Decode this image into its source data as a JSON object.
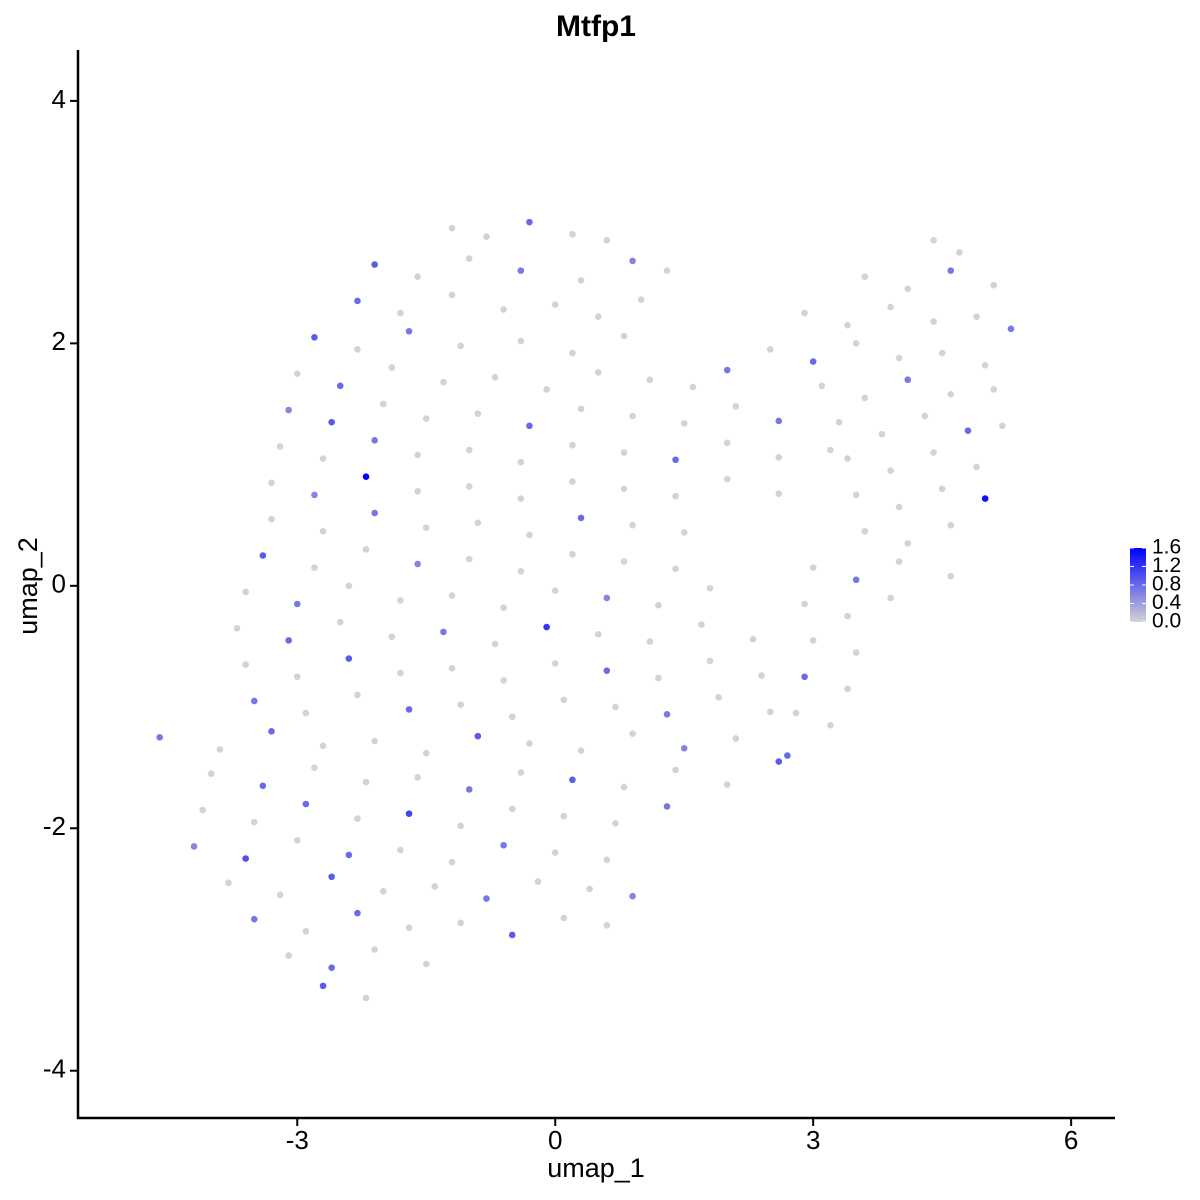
{
  "chart_data": {
    "type": "scatter",
    "title": "Mtfp1",
    "x_label": "umap_1",
    "y_label": "umap_2",
    "xlim": [
      -5.55,
      6.51
    ],
    "ylim": [
      -4.39,
      4.42
    ],
    "xticks": [
      -3,
      0,
      3,
      6
    ],
    "yticks": [
      -4,
      -2,
      0,
      2,
      4
    ],
    "grid": false,
    "color_low": "#d3d3d3",
    "color_high": "#0000ff",
    "clim": [
      0,
      1.6
    ],
    "cticks": [
      {
        "value": 0,
        "label": "0.0"
      },
      0.4,
      0.8,
      1.2,
      1.6
    ],
    "legend_position": "right",
    "x": [
      -1.2,
      -0.8,
      -0.3,
      0.2,
      0.6,
      -2.1,
      -1.6,
      -1.0,
      -0.4,
      0.3,
      0.9,
      1.3,
      -2.3,
      -1.8,
      -1.2,
      -0.6,
      0.0,
      0.5,
      1.0,
      -2.8,
      -2.3,
      -1.7,
      -1.1,
      -0.4,
      0.2,
      0.8,
      -3.0,
      -2.5,
      -1.9,
      -1.3,
      -0.7,
      -0.1,
      0.5,
      1.1,
      1.6,
      2.0,
      -3.1,
      -2.6,
      -2.0,
      -1.5,
      -0.9,
      -0.3,
      0.3,
      0.9,
      1.5,
      2.1,
      2.6,
      -3.2,
      -2.7,
      -2.1,
      -1.6,
      -1.0,
      -0.4,
      0.2,
      0.8,
      1.4,
      2.0,
      2.6,
      3.2,
      -3.3,
      -2.8,
      -2.2,
      -1.6,
      -1.0,
      -0.4,
      0.2,
      0.8,
      1.4,
      2.0,
      2.6,
      -3.3,
      -2.7,
      -2.1,
      -1.5,
      -0.9,
      -0.3,
      0.3,
      0.9,
      1.5,
      -3.4,
      -2.8,
      -2.2,
      -1.6,
      -1.0,
      -0.4,
      0.2,
      0.8,
      1.4,
      -3.6,
      -3.0,
      -2.4,
      -1.8,
      -1.2,
      -0.6,
      0.0,
      0.6,
      1.2,
      1.8,
      -3.7,
      -3.1,
      -2.5,
      -1.9,
      -1.3,
      -0.7,
      -0.1,
      0.5,
      1.1,
      1.7,
      2.3,
      -3.6,
      -3.0,
      -2.4,
      -1.8,
      -1.2,
      -0.6,
      0.0,
      0.6,
      1.2,
      1.8,
      2.4,
      -3.5,
      -2.9,
      -2.3,
      -1.7,
      -1.1,
      -0.5,
      0.1,
      0.7,
      1.3,
      1.9,
      2.5,
      -4.6,
      -3.9,
      -3.3,
      -2.7,
      -2.1,
      -1.5,
      -0.9,
      -0.3,
      0.3,
      0.9,
      1.5,
      2.1,
      2.7,
      -4.0,
      -3.4,
      -2.8,
      -2.2,
      -1.6,
      -1.0,
      -0.4,
      0.2,
      0.8,
      1.4,
      2.0,
      -4.1,
      -3.5,
      -2.9,
      -2.3,
      -1.7,
      -1.1,
      -0.5,
      0.1,
      0.7,
      1.3,
      -4.2,
      -3.6,
      -3.0,
      -2.4,
      -1.8,
      -1.2,
      -0.6,
      0.0,
      0.6,
      -3.8,
      -3.2,
      -2.6,
      -2.0,
      -1.4,
      -0.8,
      -0.2,
      0.4,
      0.9,
      -3.5,
      -2.9,
      -2.3,
      -1.7,
      -1.1,
      -0.5,
      0.1,
      0.6,
      -3.1,
      -2.6,
      -2.1,
      -1.5,
      -2.7,
      -2.2,
      4.4,
      4.7,
      3.6,
      4.1,
      4.6,
      5.1,
      2.9,
      3.4,
      3.9,
      4.4,
      4.9,
      5.3,
      2.5,
      3.0,
      3.5,
      4.0,
      4.5,
      5.0,
      3.1,
      3.6,
      4.1,
      4.6,
      5.1,
      3.3,
      3.8,
      4.3,
      4.8,
      5.2,
      3.4,
      3.9,
      4.4,
      4.9,
      3.5,
      4.0,
      4.5,
      5.0,
      3.6,
      4.1,
      4.6,
      3.0,
      3.5,
      4.0,
      4.6,
      2.9,
      3.4,
      3.9,
      3.0,
      3.5,
      2.9,
      3.4,
      2.8,
      3.2,
      2.6
    ],
    "values": [
      2.95,
      2.88,
      3.0,
      2.9,
      2.85,
      2.65,
      2.55,
      2.7,
      2.6,
      2.52,
      2.68,
      2.6,
      2.35,
      2.25,
      2.4,
      2.28,
      2.32,
      2.22,
      2.36,
      2.05,
      1.95,
      2.1,
      1.98,
      2.02,
      1.92,
      2.06,
      1.75,
      1.65,
      1.8,
      1.68,
      1.72,
      1.62,
      1.76,
      1.7,
      1.64,
      1.78,
      1.45,
      1.35,
      1.5,
      1.38,
      1.42,
      1.32,
      1.46,
      1.4,
      1.34,
      1.48,
      1.36,
      1.15,
      1.05,
      1.2,
      1.08,
      1.12,
      1.02,
      1.16,
      1.1,
      1.04,
      1.18,
      1.06,
      1.12,
      0.85,
      0.75,
      0.9,
      0.78,
      0.82,
      0.72,
      0.86,
      0.8,
      0.74,
      0.88,
      0.76,
      0.55,
      0.45,
      0.6,
      0.48,
      0.52,
      0.42,
      0.56,
      0.5,
      0.44,
      0.25,
      0.15,
      0.3,
      0.18,
      0.22,
      0.12,
      0.26,
      0.2,
      0.14,
      -0.05,
      -0.15,
      0,
      -0.12,
      -0.08,
      -0.18,
      -0.04,
      -0.1,
      -0.16,
      -0.02,
      -0.35,
      -0.45,
      -0.3,
      -0.42,
      -0.38,
      -0.48,
      -0.34,
      -0.4,
      -0.46,
      -0.32,
      -0.44,
      -0.65,
      -0.75,
      -0.6,
      -0.72,
      -0.68,
      -0.78,
      -0.64,
      -0.7,
      -0.76,
      -0.62,
      -0.74,
      -0.95,
      -1.05,
      -0.9,
      -1.02,
      -0.98,
      -1.08,
      -0.94,
      -1,
      -1.06,
      -0.92,
      -1.04,
      -1.25,
      -1.35,
      -1.2,
      -1.32,
      -1.28,
      -1.38,
      -1.24,
      -1.3,
      -1.36,
      -1.22,
      -1.34,
      -1.26,
      -1.4,
      -1.55,
      -1.65,
      -1.5,
      -1.62,
      -1.58,
      -1.68,
      -1.54,
      -1.6,
      -1.66,
      -1.52,
      -1.64,
      -1.85,
      -1.95,
      -1.8,
      -1.92,
      -1.88,
      -1.98,
      -1.84,
      -1.9,
      -1.96,
      -1.82,
      -2.15,
      -2.25,
      -2.1,
      -2.22,
      -2.18,
      -2.28,
      -2.14,
      -2.2,
      -2.26,
      -2.45,
      -2.55,
      -2.4,
      -2.52,
      -2.48,
      -2.58,
      -2.44,
      -2.5,
      -2.56,
      -2.75,
      -2.85,
      -2.7,
      -2.82,
      -2.78,
      -2.88,
      -2.74,
      -2.8,
      -3.05,
      -3.15,
      -3.0,
      -3.12,
      -3.3,
      -3.4,
      2.85,
      2.75,
      2.55,
      2.45,
      2.6,
      2.48,
      2.25,
      2.15,
      2.3,
      2.18,
      2.22,
      2.12,
      1.95,
      1.85,
      2.0,
      1.88,
      1.92,
      1.82,
      1.65,
      1.55,
      1.7,
      1.58,
      1.62,
      1.35,
      1.25,
      1.4,
      1.28,
      1.32,
      1.05,
      0.95,
      1.1,
      0.98,
      0.75,
      0.65,
      0.8,
      0.72,
      0.45,
      0.35,
      0.5,
      0.15,
      0.05,
      0.2,
      0.08,
      -0.15,
      -0.25,
      -0.1,
      -0.45,
      -0.55,
      -0.75,
      -0.85,
      -1.05,
      -1.15,
      -1.45
    ],
    "expression": [
      0,
      0,
      0.8,
      0,
      0,
      0.9,
      0,
      0,
      0.7,
      0,
      0.6,
      0,
      0.8,
      0,
      0,
      0,
      0,
      0,
      0,
      0.9,
      0,
      0.7,
      0,
      0,
      0,
      0,
      0,
      0.8,
      0,
      0,
      0,
      0,
      0,
      0,
      0,
      0.7,
      0.6,
      0.9,
      0,
      0,
      0,
      0.8,
      0,
      0,
      0,
      0,
      0.7,
      0,
      0,
      0.7,
      0,
      0,
      0,
      0,
      0,
      0.8,
      0,
      0,
      0,
      0,
      0.6,
      1.6,
      0,
      0,
      0,
      0,
      0,
      0,
      0,
      0,
      0,
      0,
      0.7,
      0,
      0,
      0,
      0.8,
      0,
      0,
      0.9,
      0,
      0,
      0.6,
      0,
      0,
      0,
      0,
      0,
      0,
      0.7,
      0,
      0,
      0,
      0,
      0,
      0.6,
      0,
      0,
      0,
      0.8,
      0,
      0,
      0.7,
      0,
      1.2,
      0,
      0,
      0,
      0,
      0,
      0,
      0.9,
      0,
      0,
      0,
      0,
      0.8,
      0,
      0,
      0,
      0.7,
      0,
      0,
      0.8,
      0,
      0,
      0,
      0,
      0.7,
      0,
      0,
      0.7,
      0,
      0.8,
      0,
      0,
      0,
      0.9,
      0,
      0,
      0,
      0.6,
      0,
      0.8,
      0,
      0.8,
      0,
      0,
      0,
      0.7,
      0,
      0.9,
      0,
      0,
      0,
      0,
      0,
      0.8,
      0,
      1.1,
      0,
      0,
      0,
      0,
      0.7,
      0.6,
      1.0,
      0,
      0.8,
      0,
      0,
      0.7,
      0,
      0,
      0,
      0,
      0.9,
      0,
      0,
      0.7,
      0,
      0,
      0.6,
      0.7,
      0,
      0.8,
      0,
      0,
      0.9,
      0,
      0,
      0,
      0.8,
      0,
      0,
      0.9,
      0,
      0,
      0,
      0,
      0,
      0.7,
      0,
      0,
      0,
      0,
      0,
      0,
      0.7,
      0,
      0.8,
      0,
      0,
      0,
      0,
      0,
      0,
      0.7,
      0,
      0,
      0,
      0,
      0,
      0.8,
      0,
      0,
      0,
      0,
      0,
      0,
      0,
      0,
      1.5,
      0,
      0,
      0,
      0,
      0.7,
      0,
      0,
      0,
      0,
      0,
      0,
      0,
      0.8,
      0,
      0,
      0,
      0.9
    ]
  }
}
